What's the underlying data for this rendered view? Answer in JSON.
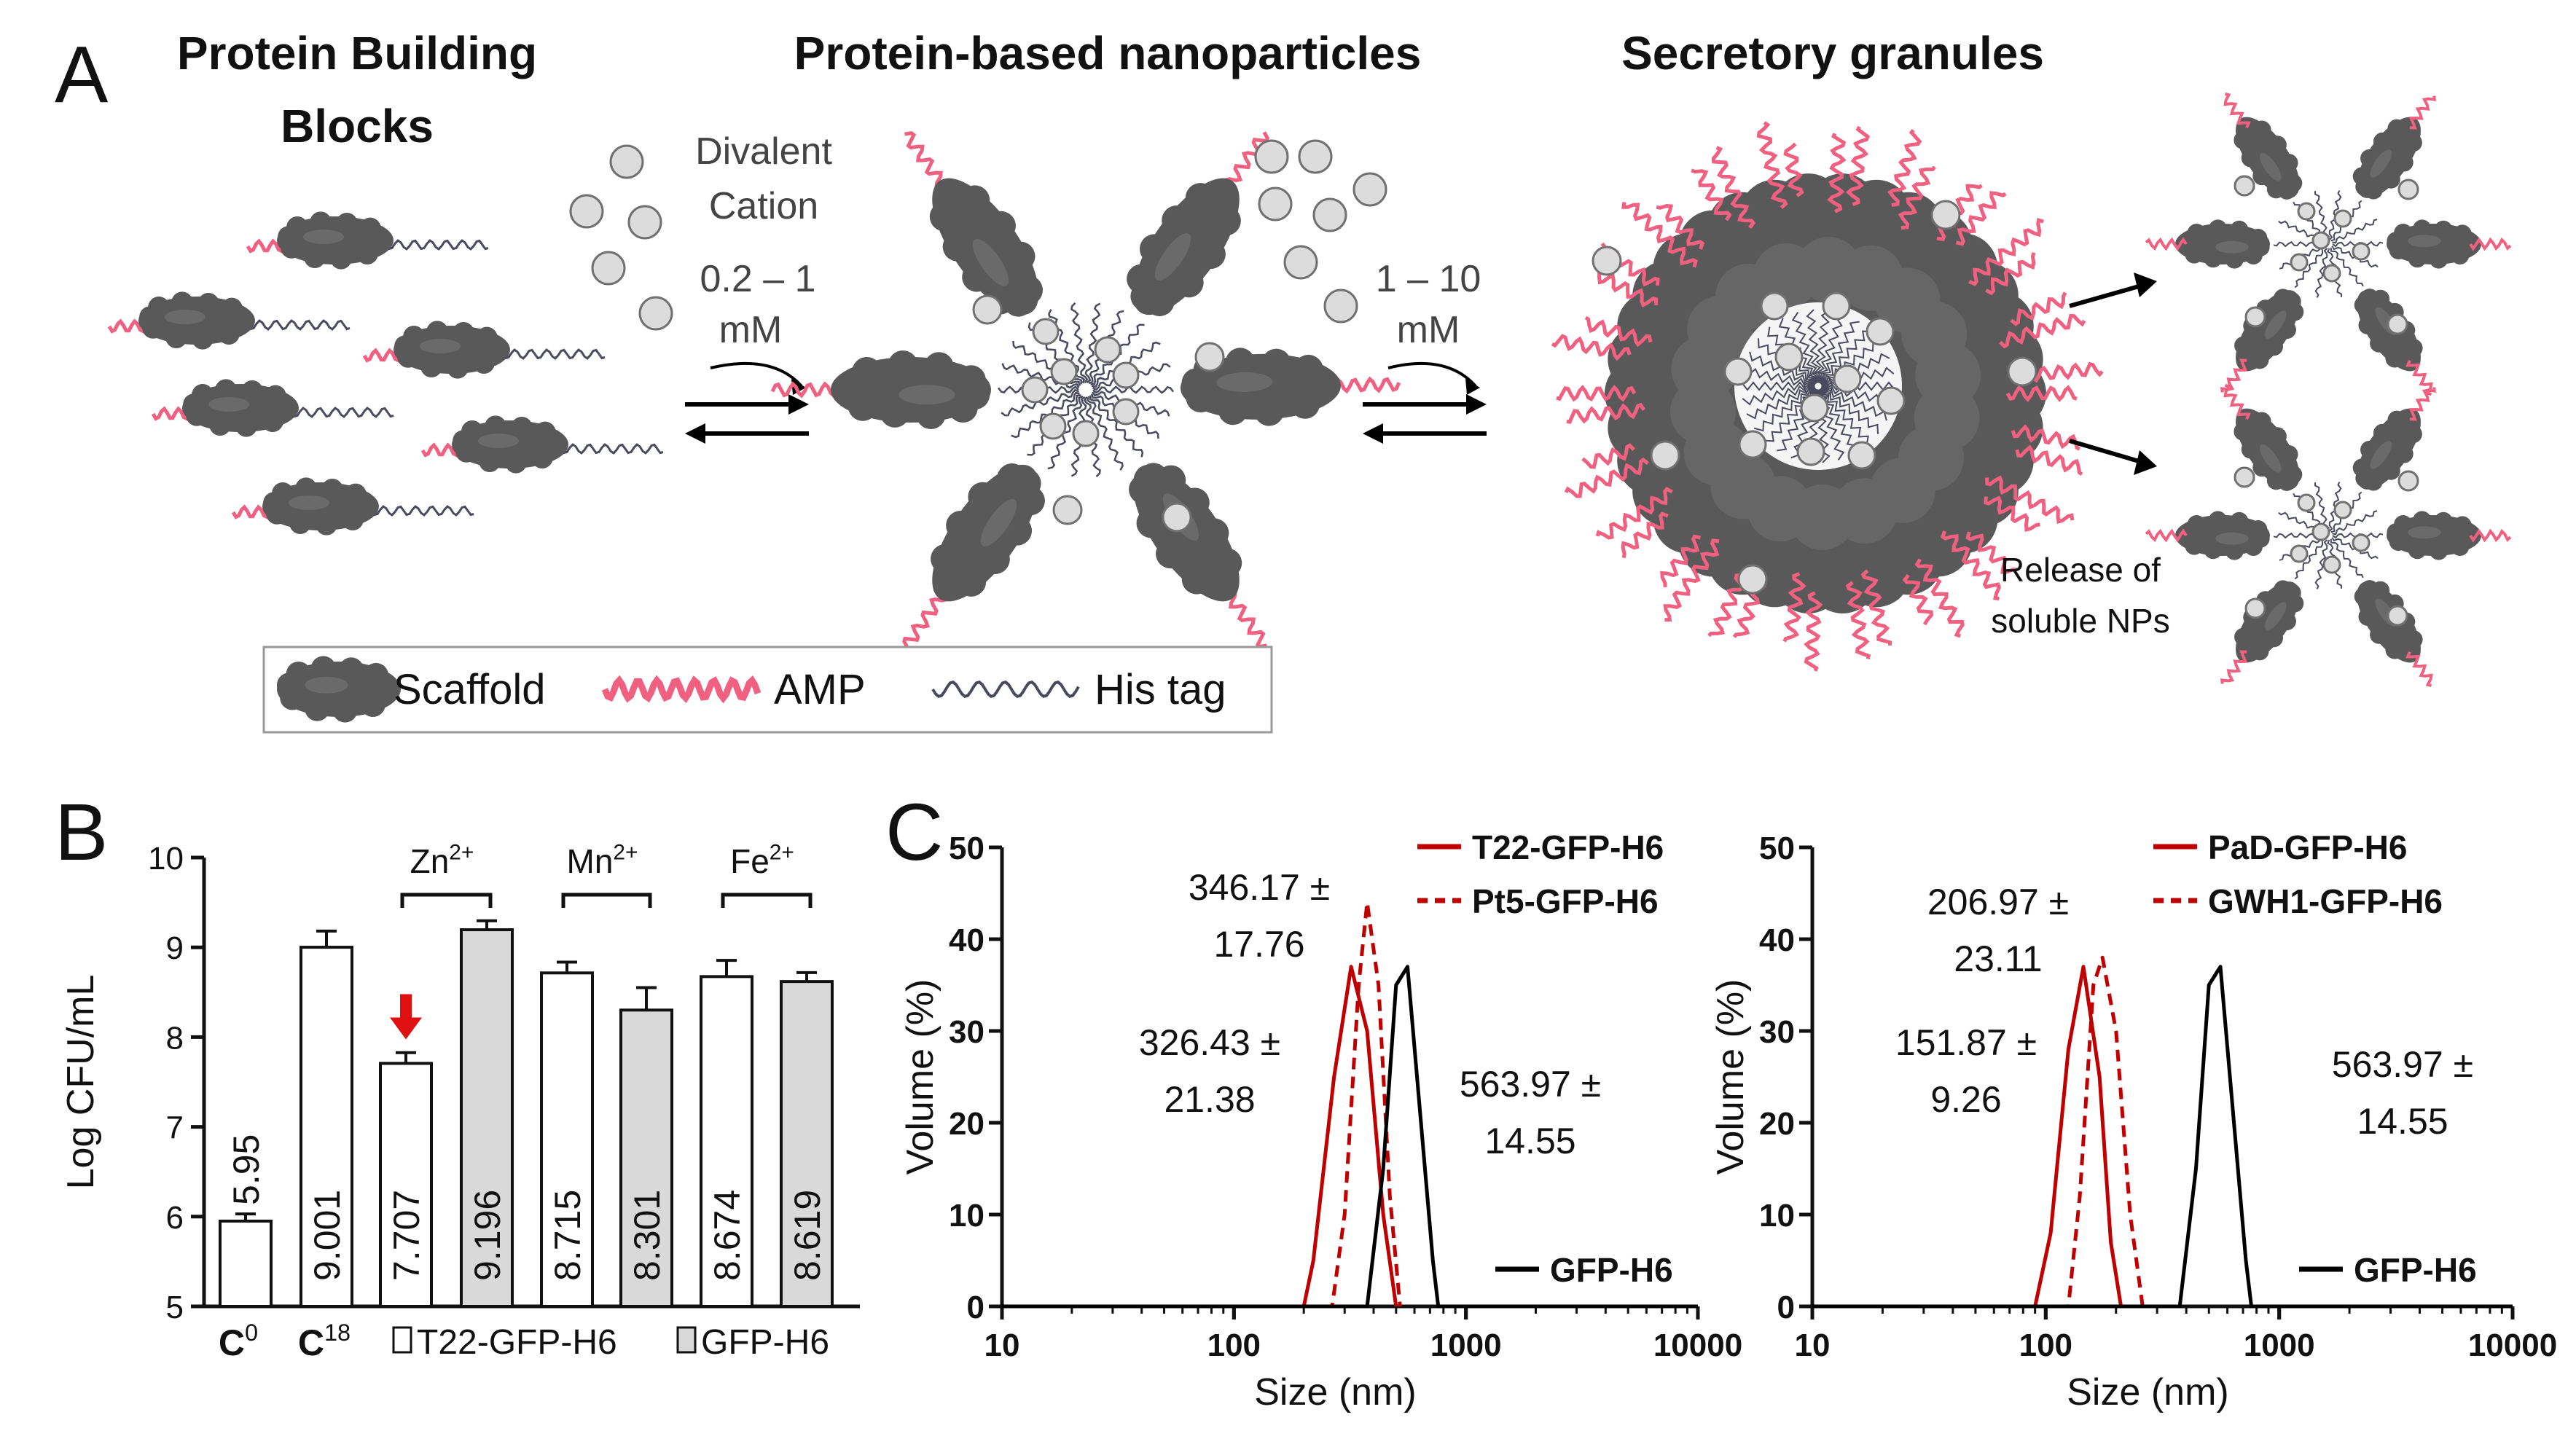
{
  "panel_a": {
    "label": "A",
    "titles": [
      "Protein Building",
      "Blocks",
      "Protein-based nanoparticles",
      "Secretory granules"
    ],
    "arrow1": [
      "Divalent",
      "Cation",
      "0.2 – 1",
      "mM"
    ],
    "arrow2": [
      "1 – 10",
      "mM"
    ],
    "release": [
      "Release of",
      "soluble NPs"
    ],
    "legend": {
      "scaffold": "Scaffold",
      "amp": "AMP",
      "his": "His tag"
    },
    "colors": {
      "scaffold": "#595959",
      "amp": "#f06080",
      "his": "#4a4a5e",
      "ion_fill": "#dcdcdc",
      "ion_stroke": "#707070"
    }
  },
  "chart_data": [
    {
      "panel": "B",
      "type": "bar",
      "ylabel": "Log CFU/mL",
      "ylim": [
        5,
        10
      ],
      "yticks": [
        5,
        6,
        7,
        8,
        9,
        10
      ],
      "bars": [
        {
          "value": 5.95,
          "label": "5.95",
          "fill": "white"
        },
        {
          "value": 9.001,
          "label": "9.001",
          "fill": "white"
        },
        {
          "value": 7.707,
          "label": "7.707",
          "fill": "white",
          "highlight": true
        },
        {
          "value": 9.196,
          "label": "9.196",
          "fill": "gray"
        },
        {
          "value": 8.715,
          "label": "8.715",
          "fill": "white"
        },
        {
          "value": 8.301,
          "label": "8.301",
          "fill": "gray"
        },
        {
          "value": 8.674,
          "label": "8.674",
          "fill": "white"
        },
        {
          "value": 8.619,
          "label": "8.619",
          "fill": "gray"
        }
      ],
      "errors": [
        0.08,
        0.18,
        0.12,
        0.1,
        0.12,
        0.25,
        0.18,
        0.1
      ],
      "groups": [
        {
          "base": "Zn",
          "sup": "2+"
        },
        {
          "base": "Mn",
          "sup": "2+"
        },
        {
          "base": "Fe",
          "sup": "2+"
        }
      ],
      "xlabels": [
        {
          "base": "C",
          "sup": "0"
        },
        {
          "base": "C",
          "sup": "18"
        }
      ],
      "legend": [
        "T22-GFP-H6",
        "GFP-H6"
      ],
      "colors": {
        "gray": "#d9d9d9",
        "highlight": "#e01010"
      }
    },
    {
      "panel": "C",
      "type": "line",
      "xscale": "log",
      "xlim": [
        10,
        10000
      ],
      "xticks": [
        "10",
        "100",
        "1000",
        "10000"
      ],
      "ylim": [
        0,
        50
      ],
      "yticks": [
        0,
        10,
        20,
        30,
        40,
        50
      ],
      "xlabel": "Size (nm)",
      "ylabel": "Volume (%)",
      "series": [
        {
          "name": "T22-GFP-H6",
          "color": "#c00000",
          "dash": false,
          "x": [
            10,
            200,
            220,
            270,
            320,
            375,
            440,
            500
          ],
          "y": [
            0,
            0,
            5,
            25,
            37,
            30,
            10,
            0
          ]
        },
        {
          "name": "Pt5-GFP-H6",
          "color": "#c00000",
          "dash": true,
          "x": [
            10,
            265,
            300,
            345,
            375,
            420,
            470,
            520
          ],
          "y": [
            0,
            0,
            10,
            35,
            44,
            35,
            12,
            0
          ]
        },
        {
          "name": "GFP-H6",
          "color": "#000000",
          "dash": false,
          "x": [
            10,
            375,
            440,
            500,
            560,
            640,
            720,
            760,
            10000
          ],
          "y": [
            0,
            0,
            15,
            35,
            37,
            20,
            5,
            0,
            0
          ]
        }
      ],
      "annotations": [
        [
          "346.17 ±",
          "17.76"
        ],
        [
          "326.43 ±",
          "21.38"
        ],
        [
          "563.97 ±",
          "14.55"
        ]
      ]
    },
    {
      "panel": "C2",
      "type": "line",
      "xscale": "log",
      "xlim": [
        10,
        10000
      ],
      "xticks": [
        "10",
        "100",
        "1000",
        "10000"
      ],
      "ylim": [
        0,
        50
      ],
      "yticks": [
        0,
        10,
        20,
        30,
        40,
        50
      ],
      "xlabel": "Size (nm)",
      "ylabel": "Volume (%)",
      "series": [
        {
          "name": "PaD-GFP-H6",
          "color": "#c00000",
          "dash": false,
          "x": [
            10,
            90,
            105,
            125,
            145,
            170,
            190,
            210
          ],
          "y": [
            0,
            0,
            8,
            28,
            37,
            25,
            7,
            0
          ]
        },
        {
          "name": "GWH1-GFP-H6",
          "color": "#c00000",
          "dash": true,
          "x": [
            10,
            125,
            140,
            160,
            175,
            200,
            230,
            260
          ],
          "y": [
            0,
            0,
            12,
            35,
            38,
            30,
            10,
            0
          ]
        },
        {
          "name": "GFP-H6",
          "color": "#000000",
          "dash": false,
          "x": [
            10,
            375,
            440,
            500,
            560,
            640,
            720,
            760,
            10000
          ],
          "y": [
            0,
            0,
            15,
            35,
            37,
            20,
            5,
            0,
            0
          ]
        }
      ],
      "annotations": [
        [
          "206.97 ±",
          "23.11"
        ],
        [
          "151.87 ±",
          "9.26"
        ],
        [
          "563.97 ±",
          "14.55"
        ]
      ]
    }
  ]
}
